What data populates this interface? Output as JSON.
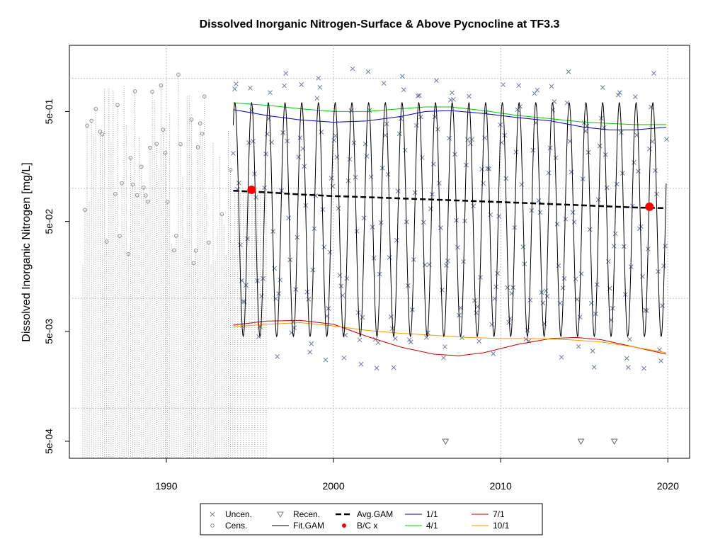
{
  "chart_data": {
    "type": "line",
    "title": "Dissolved Inorganic Nitrogen-Surface & Above Pycnocline at TF3.3",
    "xlabel": "",
    "ylabel": "Dissolved Inorganic Nitrogen [mg/L]",
    "xlim": [
      1984.2,
      2021.3
    ],
    "ylim": [
      0.00035,
      2.0
    ],
    "yscale": "log",
    "grid": true,
    "x_ticks": [
      1990,
      2000,
      2010,
      2020
    ],
    "x_tick_labels": [
      "1990",
      "2000",
      "2010",
      "2020"
    ],
    "y_ticks": [
      0.0005,
      0.005,
      0.05,
      0.5
    ],
    "y_tick_labels": [
      "5e-04",
      "5e-03",
      "5e-02",
      "5e-01"
    ],
    "y_grid": [
      0.001,
      0.01,
      0.1,
      1.0
    ],
    "series": [
      {
        "name": "1/1",
        "color": "#0000cc",
        "x": [
          1994.0,
          1996.0,
          1998.0,
          2000.0,
          2002.0,
          2004.0,
          2005.5,
          2007.0,
          2009.0,
          2011.0,
          2013.0,
          2015.0,
          2016.5,
          2018.0,
          2019.9
        ],
        "y": [
          0.52,
          0.46,
          0.42,
          0.4,
          0.41,
          0.45,
          0.5,
          0.51,
          0.48,
          0.44,
          0.41,
          0.36,
          0.34,
          0.34,
          0.36
        ]
      },
      {
        "name": "4/1",
        "color": "#00cc00",
        "x": [
          1994.0,
          1996.0,
          1998.0,
          2000.0,
          2002.0,
          2004.0,
          2005.5,
          2007.0,
          2009.0,
          2011.0,
          2013.0,
          2015.0,
          2016.5,
          2018.0,
          2019.9
        ],
        "y": [
          0.6,
          0.57,
          0.53,
          0.5,
          0.5,
          0.53,
          0.55,
          0.55,
          0.51,
          0.46,
          0.43,
          0.4,
          0.39,
          0.38,
          0.38
        ]
      },
      {
        "name": "7/1",
        "color": "#cc0000",
        "x": [
          1994.0,
          1996.0,
          1998.0,
          2000.0,
          2002.0,
          2004.0,
          2006.0,
          2007.5,
          2009.0,
          2011.0,
          2013.0,
          2014.5,
          2016.0,
          2018.0,
          2019.9
        ],
        "y": [
          0.0057,
          0.0062,
          0.0063,
          0.0058,
          0.0045,
          0.0036,
          0.0031,
          0.003,
          0.0032,
          0.0038,
          0.0043,
          0.0044,
          0.0042,
          0.0036,
          0.0031
        ]
      },
      {
        "name": "10/1",
        "color": "#ff9900",
        "x": [
          1994.0,
          1996.0,
          1998.0,
          2000.0,
          2002.0,
          2004.0,
          2006.0,
          2008.0,
          2010.0,
          2012.0,
          2014.0,
          2016.0,
          2018.0,
          2019.9
        ],
        "y": [
          0.0055,
          0.0058,
          0.006,
          0.0056,
          0.0051,
          0.0048,
          0.0046,
          0.0044,
          0.0043,
          0.0043,
          0.0042,
          0.004,
          0.0036,
          0.0032
        ]
      },
      {
        "name": "Avg.GAM",
        "color": "#000000",
        "x": [
          1994.0,
          1996.0,
          1998.0,
          2000.0,
          2002.0,
          2004.0,
          2006.0,
          2008.0,
          2010.0,
          2012.0,
          2014.0,
          2016.0,
          2018.0,
          2019.9
        ],
        "y": [
          0.095,
          0.092,
          0.088,
          0.085,
          0.083,
          0.081,
          0.079,
          0.077,
          0.075,
          0.073,
          0.071,
          0.069,
          0.067,
          0.066
        ]
      },
      {
        "name": "Fit.GAM",
        "color": "#000000",
        "x_start": 1994.0,
        "x_end": 2019.9,
        "cycles_per_year": 1,
        "peak_value": 0.6,
        "trough_value": 0.0045
      }
    ],
    "bc_points": [
      {
        "x": 1995.1,
        "y": 0.097
      },
      {
        "x": 2018.9,
        "y": 0.068
      }
    ],
    "recensored_points": [
      {
        "x": 2006.7,
        "y": 0.0005
      },
      {
        "x": 2014.8,
        "y": 0.0005
      },
      {
        "x": 2016.8,
        "y": 0.0005
      }
    ],
    "legend": {
      "position": "bottom",
      "entries": [
        {
          "label": "Uncen.",
          "symbol": "x",
          "color": "#7f7f9f"
        },
        {
          "label": "Cens.",
          "symbol": "circle",
          "color": "#8f8f8f"
        },
        {
          "label": "Recen.",
          "symbol": "triangle-down",
          "color": "#7f7f7f"
        },
        {
          "label": "Fit.GAM",
          "symbol": "line",
          "color": "#000000"
        },
        {
          "label": "Avg.GAM",
          "symbol": "dashed",
          "color": "#000000"
        },
        {
          "label": "B/C x",
          "symbol": "dot",
          "color": "#ff0000"
        },
        {
          "label": "1/1",
          "symbol": "line",
          "color": "#0000cc"
        },
        {
          "label": "4/1",
          "symbol": "line",
          "color": "#00cc00"
        },
        {
          "label": "7/1",
          "symbol": "line",
          "color": "#cc0000"
        },
        {
          "label": "10/1",
          "symbol": "line",
          "color": "#ff9900"
        }
      ]
    }
  }
}
